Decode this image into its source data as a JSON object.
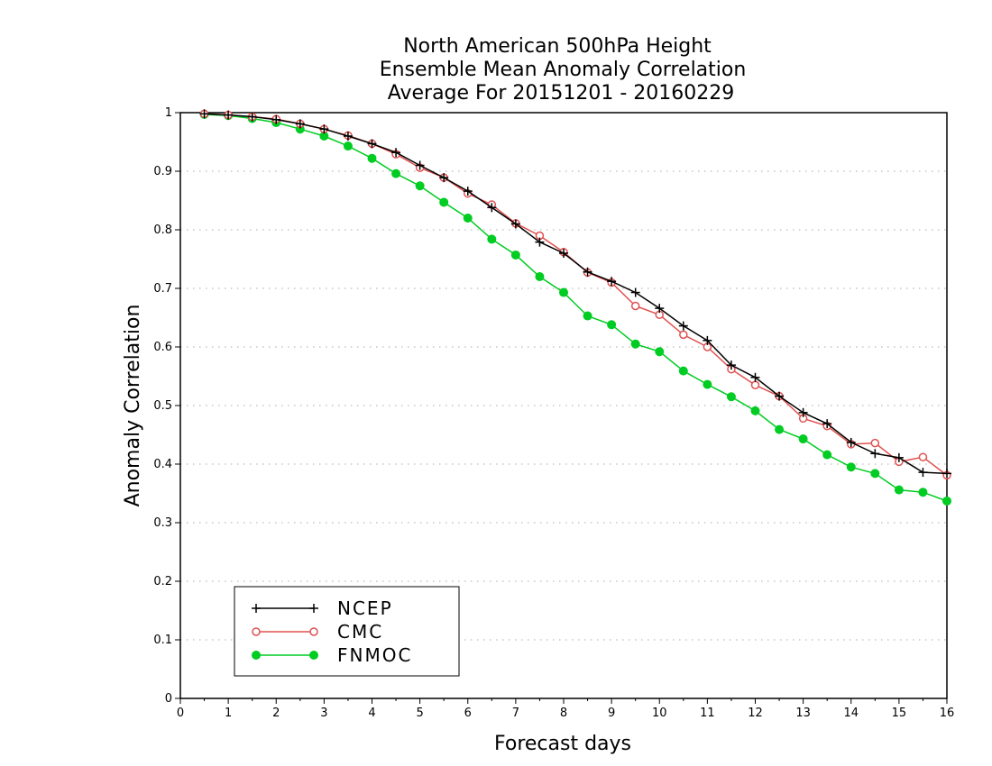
{
  "chart_data": {
    "type": "line",
    "title": [
      "North American 500hPa Height",
      "Ensemble Mean Anomaly Correlation",
      "Average For 20151201 - 20160229"
    ],
    "xlabel": "Forecast days",
    "ylabel": "Anomaly Correlation",
    "xlim": [
      0,
      16
    ],
    "ylim": [
      0,
      1
    ],
    "xticks": [
      "0",
      "1",
      "2",
      "3",
      "4",
      "5",
      "6",
      "7",
      "8",
      "9",
      "10",
      "11",
      "12",
      "13",
      "14",
      "15",
      "16"
    ],
    "yticks": [
      "0",
      "0.1",
      "0.2",
      "0.3",
      "0.4",
      "0.5",
      "0.6",
      "0.7",
      "0.8",
      "0.9",
      "1"
    ],
    "grid": "horizontal dotted",
    "legend_position": "bottom-left",
    "x": [
      0.5,
      1,
      1.5,
      2,
      2.5,
      3,
      3.5,
      4,
      4.5,
      5,
      5.5,
      6,
      6.5,
      7,
      7.5,
      8,
      8.5,
      9,
      9.5,
      10,
      10.5,
      11,
      11.5,
      12,
      12.5,
      13,
      13.5,
      14,
      14.5,
      15,
      15.5,
      16
    ],
    "series": [
      {
        "name": "NCEP",
        "color": "#000000",
        "marker": "plus",
        "values": [
          0.998,
          0.996,
          0.993,
          0.988,
          0.981,
          0.972,
          0.96,
          0.947,
          0.932,
          0.91,
          0.889,
          0.866,
          0.838,
          0.81,
          0.779,
          0.76,
          0.728,
          0.712,
          0.693,
          0.666,
          0.636,
          0.611,
          0.569,
          0.548,
          0.516,
          0.488,
          0.469,
          0.437,
          0.418,
          0.411,
          0.386,
          0.384
        ]
      },
      {
        "name": "CMC",
        "color": "#e05050",
        "marker": "open-circle",
        "values": [
          0.998,
          0.996,
          0.993,
          0.989,
          0.981,
          0.972,
          0.961,
          0.947,
          0.929,
          0.906,
          0.889,
          0.862,
          0.843,
          0.811,
          0.79,
          0.762,
          0.727,
          0.71,
          0.67,
          0.655,
          0.621,
          0.6,
          0.562,
          0.535,
          0.516,
          0.478,
          0.465,
          0.434,
          0.436,
          0.404,
          0.412,
          0.381
        ]
      },
      {
        "name": "FNMOC",
        "color": "#00cc22",
        "marker": "filled-circle",
        "values": [
          0.997,
          0.995,
          0.99,
          0.983,
          0.972,
          0.96,
          0.943,
          0.922,
          0.896,
          0.875,
          0.847,
          0.82,
          0.784,
          0.757,
          0.72,
          0.693,
          0.653,
          0.638,
          0.605,
          0.592,
          0.559,
          0.536,
          0.515,
          0.491,
          0.459,
          0.443,
          0.416,
          0.395,
          0.384,
          0.356,
          0.352,
          0.337
        ]
      }
    ]
  }
}
